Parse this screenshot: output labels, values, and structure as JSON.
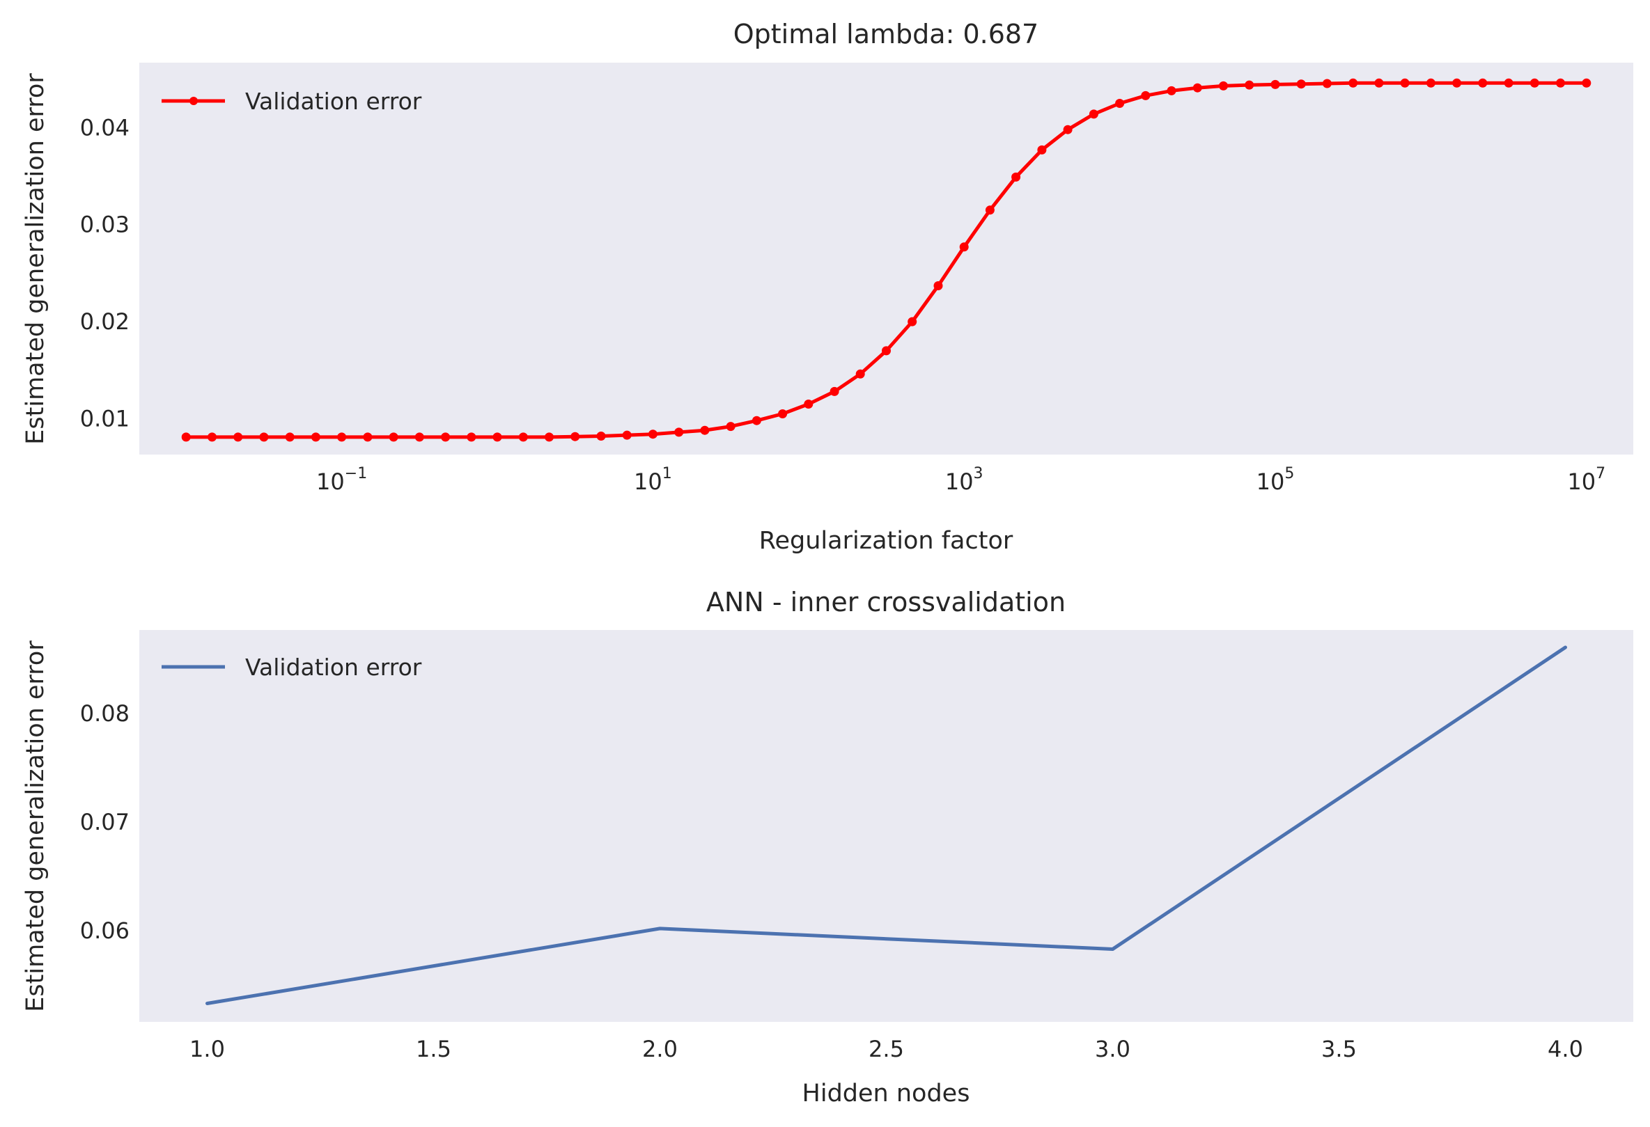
{
  "chart_data": [
    {
      "type": "line",
      "title": "Optimal lambda: 0.687",
      "xlabel": "Regularization factor",
      "ylabel": "Estimated generalization error",
      "xscale": "log",
      "xlim": [
        0.005,
        20000000
      ],
      "ylim": [
        0.0063,
        0.0467
      ],
      "xticks": [
        {
          "value": 0.1,
          "base": "10",
          "exp": "−1"
        },
        {
          "value": 10,
          "base": "10",
          "exp": "1"
        },
        {
          "value": 1000,
          "base": "10",
          "exp": "3"
        },
        {
          "value": 100000,
          "base": "10",
          "exp": "5"
        },
        {
          "value": 10000000,
          "base": "10",
          "exp": "7"
        }
      ],
      "yticks": [
        {
          "value": 0.01,
          "label": "0.01"
        },
        {
          "value": 0.02,
          "label": "0.02"
        },
        {
          "value": 0.03,
          "label": "0.03"
        },
        {
          "value": 0.04,
          "label": "0.04"
        }
      ],
      "grid": false,
      "legend_position": "upper-left",
      "series": [
        {
          "name": "Validation error",
          "color": "#FF0000",
          "marker": "dot",
          "x": [
            0.01,
            0.01468,
            0.02154,
            0.03162,
            0.04642,
            0.06813,
            0.1,
            0.1468,
            0.2154,
            0.3162,
            0.4642,
            0.6813,
            1,
            1.468,
            2.154,
            3.162,
            4.642,
            6.813,
            10,
            14.68,
            21.54,
            31.62,
            46.42,
            68.13,
            100,
            146.8,
            215.4,
            316.2,
            464.2,
            681.3,
            1000,
            1468,
            2154,
            3162,
            4642,
            6813,
            10000,
            14678,
            21544,
            31623,
            46416,
            68129,
            100000,
            146780,
            215440,
            316230,
            464160,
            681290,
            1000000,
            1467800,
            2154400,
            3162300,
            4641600,
            6812900,
            10000000
          ],
          "y": [
            0.0081,
            0.0081,
            0.0081,
            0.0081,
            0.0081,
            0.0081,
            0.0081,
            0.0081,
            0.0081,
            0.0081,
            0.0081,
            0.0081,
            0.0081,
            0.0081,
            0.0081,
            0.00815,
            0.0082,
            0.0083,
            0.0084,
            0.0086,
            0.0088,
            0.0092,
            0.0098,
            0.0105,
            0.0115,
            0.0128,
            0.0146,
            0.017,
            0.02,
            0.0237,
            0.0277,
            0.0315,
            0.0349,
            0.0377,
            0.0398,
            0.0414,
            0.0425,
            0.0433,
            0.0438,
            0.0441,
            0.0443,
            0.0444,
            0.04445,
            0.0445,
            0.04455,
            0.0446,
            0.0446,
            0.0446,
            0.0446,
            0.0446,
            0.0446,
            0.0446,
            0.0446,
            0.0446,
            0.0446
          ]
        }
      ]
    },
    {
      "type": "line",
      "title": "ANN - inner crossvalidation",
      "xlabel": "Hidden nodes",
      "ylabel": "Estimated generalization error",
      "xscale": "linear",
      "xlim": [
        0.85,
        4.15
      ],
      "ylim": [
        0.0516,
        0.0877
      ],
      "xticks": [
        {
          "value": 1.0,
          "label": "1.0"
        },
        {
          "value": 1.5,
          "label": "1.5"
        },
        {
          "value": 2.0,
          "label": "2.0"
        },
        {
          "value": 2.5,
          "label": "2.5"
        },
        {
          "value": 3.0,
          "label": "3.0"
        },
        {
          "value": 3.5,
          "label": "3.5"
        },
        {
          "value": 4.0,
          "label": "4.0"
        }
      ],
      "yticks": [
        {
          "value": 0.06,
          "label": "0.06"
        },
        {
          "value": 0.07,
          "label": "0.07"
        },
        {
          "value": 0.08,
          "label": "0.08"
        }
      ],
      "grid": false,
      "legend_position": "upper-left",
      "series": [
        {
          "name": "Validation error",
          "color": "#4C72B0",
          "marker": "none",
          "x": [
            1,
            2,
            3,
            4
          ],
          "y": [
            0.0533,
            0.0602,
            0.0583,
            0.0861
          ]
        }
      ]
    }
  ]
}
